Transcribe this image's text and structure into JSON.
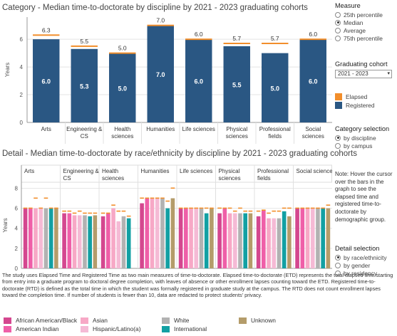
{
  "top_title": "Category - Median time-to-doctorate  by discipline by 2021 - 2023 graduating cohorts",
  "detail_title": "Detail - Median time-to-doctorate by race/ethnicity by discipline by 2021 - 2023 graduating cohorts",
  "colors": {
    "elapsed": "#f28e2b",
    "registered": "#2a5783",
    "race": {
      "African American/Black": "#d4478f",
      "American Indian": "#ef5fa8",
      "Asian": "#f7a8c6",
      "Hispanic/Latino(a)": "#f5bad5",
      "White": "#b2b2b2",
      "International": "#12a0a3",
      "Unknown": "#b49c6a"
    }
  },
  "measure": {
    "header": "Measure",
    "options": [
      "25th percentile",
      "Median",
      "Average",
      "75th percentile"
    ],
    "selected": "Median"
  },
  "cohort": {
    "header": "Graduating cohort",
    "value": "2021 - 2023"
  },
  "legend": {
    "items": [
      {
        "label": "Elapsed",
        "color_key": "elapsed"
      },
      {
        "label": "Registered",
        "color_key": "registered"
      }
    ]
  },
  "category_selection": {
    "header": "Category selection",
    "options": [
      "by discipline",
      "by campus"
    ],
    "selected": "by discipline"
  },
  "note": "Note: Hover the cursor over the bars in the graph to see the elapsed time and registered time-to-doctorate by demographic group.",
  "detail_selection": {
    "header": "Detail selection",
    "options": [
      "by race/ethnicity",
      "by gender",
      "by residency"
    ],
    "selected": "by race/ethnicity"
  },
  "footnote": "The study uses Elapsed Time and Registered Time as two main measures of time-to-doctorate.  Elapsed time-to-doctorate (ETD) represents the total elapsed time starting from entry into a graduate program to doctoral degree completion, with leaves of absence or other enrollment lapses counting toward the ETD. Registered time-to-doctorate (RTD) is defined as the total time in which the student was formally registered in graduate study at the campus. The RTD does not count enrollment lapses toward the completion time. If number of students is fewer than 10, data are redacted to protect students' privacy.",
  "bottom_legend": [
    {
      "label": "African American/Black",
      "color_key": "African American/Black"
    },
    {
      "label": "American Indian",
      "color_key": "American Indian"
    },
    {
      "label": "Asian",
      "color_key": "Asian"
    },
    {
      "label": "Hispanic/Latino(a)",
      "color_key": "Hispanic/Latino(a)"
    },
    {
      "label": "White",
      "color_key": "White"
    },
    {
      "label": "International",
      "color_key": "International"
    },
    {
      "label": "Unknown",
      "color_key": "Unknown"
    }
  ],
  "chart_data": [
    {
      "type": "bar",
      "title": "Category - Median time-to-doctorate  by discipline by 2021 - 2023 graduating cohorts",
      "ylabel": "Years",
      "ylim": [
        0,
        7.6
      ],
      "yticks": [
        0,
        2,
        4,
        6
      ],
      "grid": true,
      "categories": [
        "Arts",
        "Engineering & CS",
        "Health sciences",
        "Humanities",
        "Life sciences",
        "Physical sciences",
        "Professional fields",
        "Social sciences"
      ],
      "category_lines": [
        [
          "Arts"
        ],
        [
          "Engineering &",
          "CS"
        ],
        [
          "Health",
          "sciences"
        ],
        [
          "Humanities"
        ],
        [
          "Life sciences"
        ],
        [
          "Physical",
          "sciences"
        ],
        [
          "Professional",
          "fields"
        ],
        [
          "Social",
          "sciences"
        ]
      ],
      "series": [
        {
          "name": "Registered",
          "values": [
            6.0,
            5.3,
            5.0,
            7.0,
            6.0,
            5.5,
            5.0,
            6.0
          ]
        },
        {
          "name": "Elapsed",
          "values": [
            6.3,
            5.5,
            5.0,
            7.0,
            6.0,
            5.7,
            5.7,
            6.0
          ]
        }
      ]
    },
    {
      "type": "bar",
      "title": "Detail - Median time-to-doctorate by race/ethnicity by discipline by 2021 - 2023 graduating cohorts",
      "ylabel": "Years",
      "ylim": [
        0,
        8.6
      ],
      "yticks": [
        0,
        2,
        4,
        6,
        8
      ],
      "grid": true,
      "panels": [
        "Arts",
        "Engineering & CS",
        "Health sciences",
        "Humanities",
        "Life sciences",
        "Physical sciences",
        "Professional fields",
        "Social sciences"
      ],
      "panel_lines": [
        [
          "Arts"
        ],
        [
          "Engineering &",
          "CS"
        ],
        [
          "Health",
          "sciences"
        ],
        [
          "Humanities"
        ],
        [
          "Life sciences"
        ],
        [
          "Physical",
          "sciences"
        ],
        [
          "Professional",
          "fields"
        ],
        [
          "Social sciences"
        ]
      ],
      "groups": [
        "African American/Black",
        "American Indian",
        "Asian",
        "Hispanic/Latino(a)",
        "White",
        "International",
        "Unknown"
      ],
      "series": [
        {
          "name": "Registered",
          "values": [
            [
              6.0,
              6.0,
              6.0,
              6.0,
              6.0,
              6.0,
              6.0
            ],
            [
              5.5,
              5.5,
              5.3,
              5.3,
              5.3,
              5.2,
              5.3
            ],
            [
              5.2,
              5.5,
              6.0,
              4.7,
              5.2,
              5.0,
              null
            ],
            [
              6.5,
              7.0,
              7.0,
              7.0,
              7.0,
              6.0,
              7.0
            ],
            [
              6.0,
              6.0,
              6.0,
              6.0,
              6.0,
              5.5,
              6.0
            ],
            [
              5.5,
              6.0,
              5.5,
              5.5,
              5.5,
              5.5,
              5.5
            ],
            [
              5.2,
              5.8,
              5.0,
              5.0,
              5.0,
              5.7,
              5.2
            ],
            [
              6.0,
              6.0,
              6.0,
              6.0,
              6.0,
              6.0,
              6.0
            ]
          ]
        },
        {
          "name": "Elapsed",
          "values": [
            [
              6.0,
              6.0,
              7.0,
              6.0,
              7.0,
              6.0,
              6.0
            ],
            [
              5.7,
              5.7,
              5.5,
              5.7,
              5.5,
              5.5,
              5.5
            ],
            [
              5.5,
              5.5,
              6.3,
              5.7,
              5.7,
              5.2,
              null
            ],
            [
              7.0,
              7.0,
              7.0,
              7.0,
              7.0,
              6.7,
              8.0
            ],
            [
              6.0,
              6.0,
              6.0,
              6.0,
              6.0,
              6.0,
              6.0
            ],
            [
              6.0,
              6.0,
              6.0,
              5.7,
              6.0,
              5.7,
              5.7
            ],
            [
              5.7,
              5.8,
              5.5,
              5.7,
              5.7,
              6.0,
              6.0
            ],
            [
              6.0,
              6.0,
              6.0,
              6.0,
              6.0,
              6.0,
              6.3
            ]
          ]
        }
      ]
    }
  ]
}
